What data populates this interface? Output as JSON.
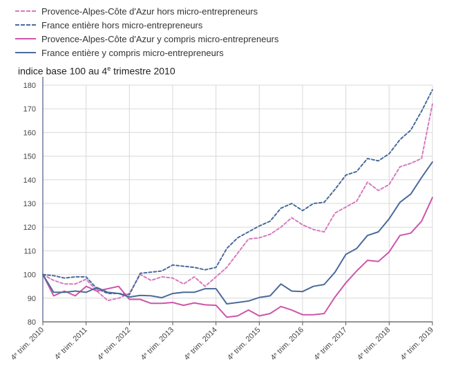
{
  "chart_data": {
    "type": "line",
    "title": "",
    "ylabel_main": "indice base 100 au 4",
    "ylabel_sup": "e",
    "ylabel_tail": " trimestre 2010",
    "ylim": [
      80,
      180
    ],
    "yticks": [
      80,
      90,
      100,
      110,
      120,
      130,
      140,
      150,
      160,
      170,
      180
    ],
    "x_count": 37,
    "xtick_indices": [
      0,
      4,
      8,
      12,
      16,
      20,
      24,
      28,
      32,
      36
    ],
    "xtick_labels": [
      {
        "pre": "4",
        "sup": "e",
        "post": " trim. 2010"
      },
      {
        "pre": "4",
        "sup": "e",
        "post": " trim. 2011"
      },
      {
        "pre": "4",
        "sup": "e",
        "post": " trim. 2012"
      },
      {
        "pre": "4",
        "sup": "e",
        "post": " trim. 2013"
      },
      {
        "pre": "4",
        "sup": "e",
        "post": " trim. 2014"
      },
      {
        "pre": "4",
        "sup": "e",
        "post": " trim. 2015"
      },
      {
        "pre": "4",
        "sup": "e",
        "post": " trim. 2016"
      },
      {
        "pre": "4",
        "sup": "e",
        "post": " trim. 2017"
      },
      {
        "pre": "4",
        "sup": "e",
        "post": " trim. 2018"
      },
      {
        "pre": "4",
        "sup": "e",
        "post": " trim. 2019"
      }
    ],
    "grid": true,
    "legend_position": "top-left",
    "series": [
      {
        "name": "Provence-Alpes-Côte d'Azur hors micro-entrepreneurs",
        "color": "#d67ac0",
        "dashed": true,
        "values": [
          100,
          97.5,
          96,
          96,
          98,
          93,
          89,
          90,
          92,
          100,
          97.5,
          99,
          98.5,
          96,
          99,
          95,
          99,
          103,
          109,
          115,
          115.5,
          117,
          120,
          124,
          121,
          119,
          118,
          126,
          128.5,
          131,
          139,
          135.5,
          138,
          145.5,
          147,
          149,
          172
        ]
      },
      {
        "name": "France entière hors micro-entrepreneurs",
        "color": "#4a6a9a",
        "dashed": true,
        "values": [
          100,
          99.5,
          98.5,
          99,
          99,
          94,
          92,
          92,
          91.5,
          100.5,
          101,
          101.5,
          104,
          103.5,
          103,
          102,
          103,
          111,
          115.5,
          118,
          120.5,
          122.5,
          128,
          130,
          127,
          130,
          130.5,
          136,
          142,
          143.5,
          149,
          148,
          151,
          157,
          161,
          169,
          178
        ]
      },
      {
        "name": "Provence-Alpes-Côte d'Azur y compris micro-entrepreneurs",
        "color": "#cc55aa",
        "dashed": false,
        "values": [
          100,
          91,
          93,
          91,
          95,
          93,
          94,
          95,
          89.5,
          89.5,
          87.8,
          87.8,
          88.2,
          87,
          88,
          87.2,
          87,
          82,
          82.5,
          85,
          82.5,
          83.5,
          86.5,
          85,
          83,
          83,
          83.5,
          90.5,
          96.5,
          101.5,
          106,
          105.5,
          109.5,
          116.5,
          117.5,
          122.5,
          132.5
        ]
      },
      {
        "name": "France entière y compris micro-entrepreneurs",
        "color": "#4a6a9a",
        "dashed": false,
        "values": [
          100,
          92.5,
          92.5,
          93,
          92.5,
          94.5,
          92.5,
          92,
          90.5,
          91.2,
          91,
          90.2,
          92,
          92.5,
          92.5,
          94,
          94,
          87.6,
          88.2,
          88.8,
          90.3,
          91,
          96,
          93,
          92.8,
          95,
          95.8,
          101,
          108.5,
          111,
          116.5,
          118,
          123.5,
          130.5,
          134,
          141,
          147.5
        ]
      }
    ]
  }
}
